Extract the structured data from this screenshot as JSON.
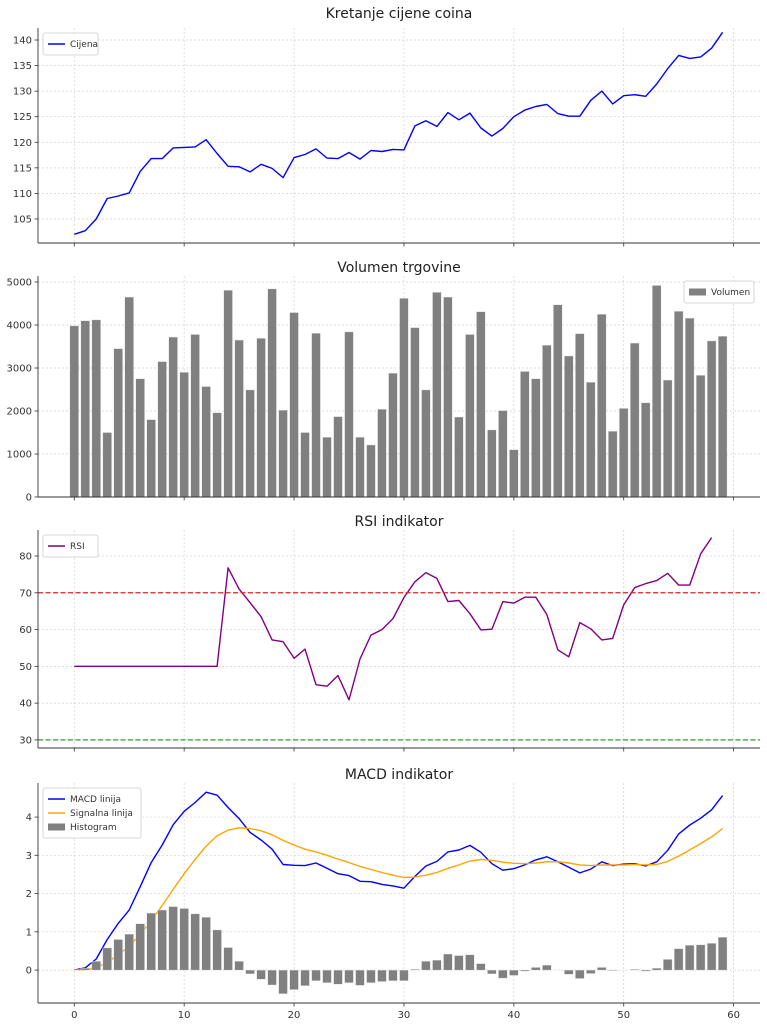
{
  "chart_data": [
    {
      "type": "line",
      "title": "Kretanje cijene coina",
      "legend": "top-left",
      "grid": true,
      "xlim": [
        -3.3,
        62.4
      ],
      "ylim": [
        100.3,
        142.35
      ],
      "yticks": [
        105,
        110,
        115,
        120,
        125,
        130,
        135,
        140
      ],
      "xticks": [
        0,
        10,
        20,
        30,
        40,
        50,
        60
      ],
      "show_xtick_labels": false,
      "series": [
        {
          "name": "Cijena",
          "color": "#0000ff",
          "values": [
            102.0,
            102.7,
            105.0,
            109.0,
            109.5,
            110.1,
            114.3,
            116.8,
            116.8,
            118.9,
            119.0,
            119.1,
            120.5,
            117.8,
            115.3,
            115.2,
            114.2,
            115.7,
            114.9,
            113.1,
            117.0,
            117.6,
            118.7,
            116.9,
            116.8,
            118.0,
            116.7,
            118.4,
            118.2,
            118.6,
            118.5,
            123.2,
            124.2,
            123.1,
            125.8,
            124.4,
            125.7,
            122.8,
            121.2,
            122.7,
            125.0,
            126.3,
            127.0,
            127.4,
            125.6,
            125.1,
            125.1,
            128.2,
            130.0,
            127.5,
            129.1,
            129.3,
            129.0,
            131.4,
            134.4,
            137.0,
            136.4,
            136.7,
            138.4,
            141.5
          ]
        }
      ]
    },
    {
      "type": "bar",
      "title": "Volumen trgovine",
      "legend": "top-right",
      "grid": true,
      "xlim": [
        -3.3,
        62.4
      ],
      "ylim": [
        0,
        5140
      ],
      "yticks": [
        0,
        1000,
        2000,
        3000,
        4000,
        5000
      ],
      "xticks": [
        0,
        10,
        20,
        30,
        40,
        50,
        60
      ],
      "show_xtick_labels": false,
      "series": [
        {
          "name": "Volumen",
          "color": "#808080",
          "values": [
            3980,
            4100,
            4120,
            1500,
            3450,
            4650,
            2750,
            1800,
            3150,
            3720,
            2900,
            3780,
            2570,
            1960,
            4810,
            3650,
            2490,
            3690,
            4840,
            2020,
            4290,
            1500,
            3810,
            1390,
            1870,
            3840,
            1390,
            1210,
            2040,
            2880,
            4620,
            3940,
            2490,
            4760,
            4650,
            1860,
            3780,
            4310,
            1560,
            2010,
            1100,
            2920,
            2750,
            3530,
            4470,
            3280,
            3800,
            2670,
            4250,
            1530,
            2060,
            3580,
            2190,
            4920,
            2720,
            4320,
            4160,
            2830,
            3630,
            3740
          ]
        }
      ]
    },
    {
      "type": "line",
      "title": "RSI indikator",
      "legend": "top-left",
      "grid": true,
      "xlim": [
        -3.3,
        62.4
      ],
      "ylim": [
        27.8,
        87.07
      ],
      "yticks": [
        30,
        40,
        50,
        60,
        70,
        80
      ],
      "xticks": [
        0,
        10,
        20,
        30,
        40,
        50,
        60
      ],
      "show_xtick_labels": false,
      "hlines": [
        {
          "y": 70,
          "color": "#d62728",
          "style": "dashed"
        },
        {
          "y": 30,
          "color": "#2ca02c",
          "style": "dashed"
        }
      ],
      "series": [
        {
          "name": "RSI",
          "color": "#800080",
          "values": [
            50,
            50,
            50,
            50,
            50,
            50,
            50,
            50,
            50,
            50,
            50,
            50,
            50,
            50,
            76.8,
            71.0,
            67.3,
            63.5,
            57.2,
            56.7,
            52.2,
            54.7,
            45.0,
            44.6,
            47.5,
            40.9,
            52.0,
            58.5,
            60.0,
            63.0,
            68.7,
            73.0,
            75.5,
            73.9,
            67.6,
            67.9,
            64.3,
            59.9,
            60.1,
            67.6,
            67.2,
            68.8,
            68.8,
            64.1,
            54.5,
            52.6,
            61.9,
            60.2,
            57.2,
            57.6,
            66.7,
            71.4,
            72.5,
            73.3,
            75.3,
            72.1,
            72.1,
            80.6,
            85.0
          ]
        }
      ]
    },
    {
      "type": "line",
      "title": "MACD indikator",
      "legend": "top-left",
      "grid": true,
      "xlim": [
        -3.3,
        62.4
      ],
      "ylim": [
        -0.86,
        4.89
      ],
      "yticks": [
        0,
        1,
        2,
        3,
        4
      ],
      "xticks": [
        0,
        10,
        20,
        30,
        40,
        50,
        60
      ],
      "show_xtick_labels": true,
      "series": [
        {
          "name": "MACD linija",
          "color": "#0000ff",
          "kind": "line",
          "values": [
            0,
            0.06,
            0.29,
            0.8,
            1.22,
            1.57,
            2.18,
            2.81,
            3.27,
            3.8,
            4.15,
            4.38,
            4.65,
            4.57,
            4.25,
            3.96,
            3.6,
            3.4,
            3.16,
            2.76,
            2.74,
            2.73,
            2.8,
            2.66,
            2.52,
            2.47,
            2.32,
            2.31,
            2.24,
            2.2,
            2.14,
            2.45,
            2.72,
            2.84,
            3.09,
            3.14,
            3.26,
            3.08,
            2.78,
            2.61,
            2.65,
            2.75,
            2.88,
            2.96,
            2.83,
            2.69,
            2.54,
            2.64,
            2.83,
            2.73,
            2.77,
            2.78,
            2.72,
            2.83,
            3.13,
            3.56,
            3.79,
            3.97,
            4.19,
            4.56
          ]
        },
        {
          "name": "Signalna linija",
          "color": "#ffa500",
          "kind": "line",
          "values": [
            0,
            0.01,
            0.06,
            0.2,
            0.4,
            0.63,
            0.93,
            1.29,
            1.69,
            2.11,
            2.52,
            2.89,
            3.24,
            3.51,
            3.66,
            3.72,
            3.7,
            3.64,
            3.54,
            3.39,
            3.27,
            3.16,
            3.09,
            3.0,
            2.9,
            2.81,
            2.71,
            2.63,
            2.55,
            2.48,
            2.42,
            2.43,
            2.48,
            2.55,
            2.66,
            2.75,
            2.85,
            2.89,
            2.87,
            2.82,
            2.79,
            2.78,
            2.8,
            2.83,
            2.83,
            2.8,
            2.75,
            2.73,
            2.75,
            2.75,
            2.75,
            2.76,
            2.75,
            2.76,
            2.84,
            2.98,
            3.14,
            3.31,
            3.48,
            3.7
          ]
        },
        {
          "name": "Histogram",
          "color": "#808080",
          "kind": "bar",
          "values": [
            0,
            0.05,
            0.23,
            0.58,
            0.8,
            0.94,
            1.21,
            1.49,
            1.57,
            1.66,
            1.61,
            1.47,
            1.38,
            1.05,
            0.59,
            0.23,
            -0.1,
            -0.24,
            -0.39,
            -0.62,
            -0.51,
            -0.41,
            -0.28,
            -0.33,
            -0.37,
            -0.33,
            -0.4,
            -0.33,
            -0.3,
            -0.28,
            -0.28,
            0.02,
            0.23,
            0.26,
            0.42,
            0.38,
            0.4,
            0.17,
            -0.1,
            -0.21,
            -0.14,
            -0.03,
            0.07,
            0.13,
            0,
            -0.11,
            -0.22,
            -0.09,
            0.07,
            -0.02,
            0,
            0.02,
            -0.03,
            0.05,
            0.28,
            0.56,
            0.65,
            0.66,
            0.7,
            0.86
          ]
        }
      ]
    }
  ]
}
